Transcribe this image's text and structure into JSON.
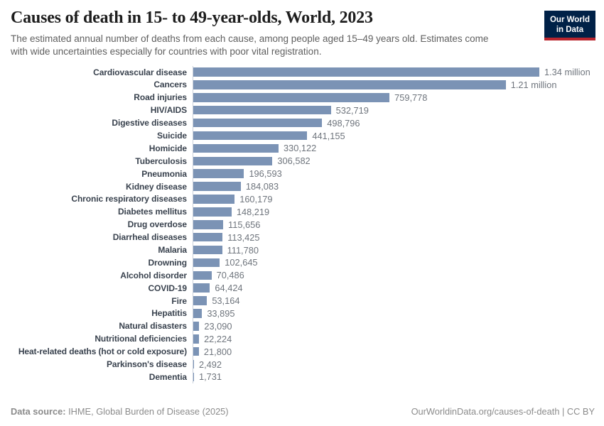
{
  "header": {
    "title": "Causes of death in 15- to 49-year-olds, World, 2023",
    "subtitle": "The estimated annual number of deaths from each cause, among people aged 15–49 years old. Estimates come\nwith wide uncertainties especially for countries with poor vital registration.",
    "logo": {
      "line1": "Our World",
      "line2": "in Data"
    }
  },
  "chart_data": {
    "type": "bar",
    "orientation": "horizontal",
    "title": "Causes of death in 15- to 49-year-olds, World, 2023",
    "xlabel": "",
    "ylabel": "",
    "xlim": [
      0,
      1340000
    ],
    "grid": false,
    "legend": "none",
    "bar_color": "#7b93b5",
    "categories": [
      "Cardiovascular disease",
      "Cancers",
      "Road injuries",
      "HIV/AIDS",
      "Digestive diseases",
      "Suicide",
      "Homicide",
      "Tuberculosis",
      "Pneumonia",
      "Kidney disease",
      "Chronic respiratory diseases",
      "Diabetes mellitus",
      "Drug overdose",
      "Diarrheal diseases",
      "Malaria",
      "Drowning",
      "Alcohol disorder",
      "COVID-19",
      "Fire",
      "Hepatitis",
      "Natural disasters",
      "Nutritional deficiencies",
      "Heat-related deaths (hot or cold exposure)",
      "Parkinson's disease",
      "Dementia"
    ],
    "values": [
      1340000,
      1210000,
      759778,
      532719,
      498796,
      441155,
      330122,
      306582,
      196593,
      184083,
      160179,
      148219,
      115656,
      113425,
      111780,
      102645,
      70486,
      64424,
      53164,
      33895,
      23090,
      22224,
      21800,
      2492,
      1731
    ],
    "value_labels": [
      "1.34 million",
      "1.21 million",
      "759,778",
      "532,719",
      "498,796",
      "441,155",
      "330,122",
      "306,582",
      "196,593",
      "184,083",
      "160,179",
      "148,219",
      "115,656",
      "113,425",
      "111,780",
      "102,645",
      "70,486",
      "64,424",
      "53,164",
      "33,895",
      "23,090",
      "22,224",
      "21,800",
      "2,492",
      "1,731"
    ]
  },
  "footer": {
    "source_label": "Data source:",
    "source_value": " IHME, Global Burden of Disease (2025)",
    "attribution": "OurWorldinData.org/causes-of-death | CC BY"
  },
  "colors": {
    "bar": "#7b93b5",
    "axis_line": "#c8d0da",
    "logo_background": "#002147",
    "logo_stripe": "#b9252e",
    "title_text": "#1d1d1d",
    "subtitle_text": "#5f5f5f",
    "label_text": "#39424e",
    "value_text": "#6f757d",
    "footer_text": "#8b8b8b"
  }
}
